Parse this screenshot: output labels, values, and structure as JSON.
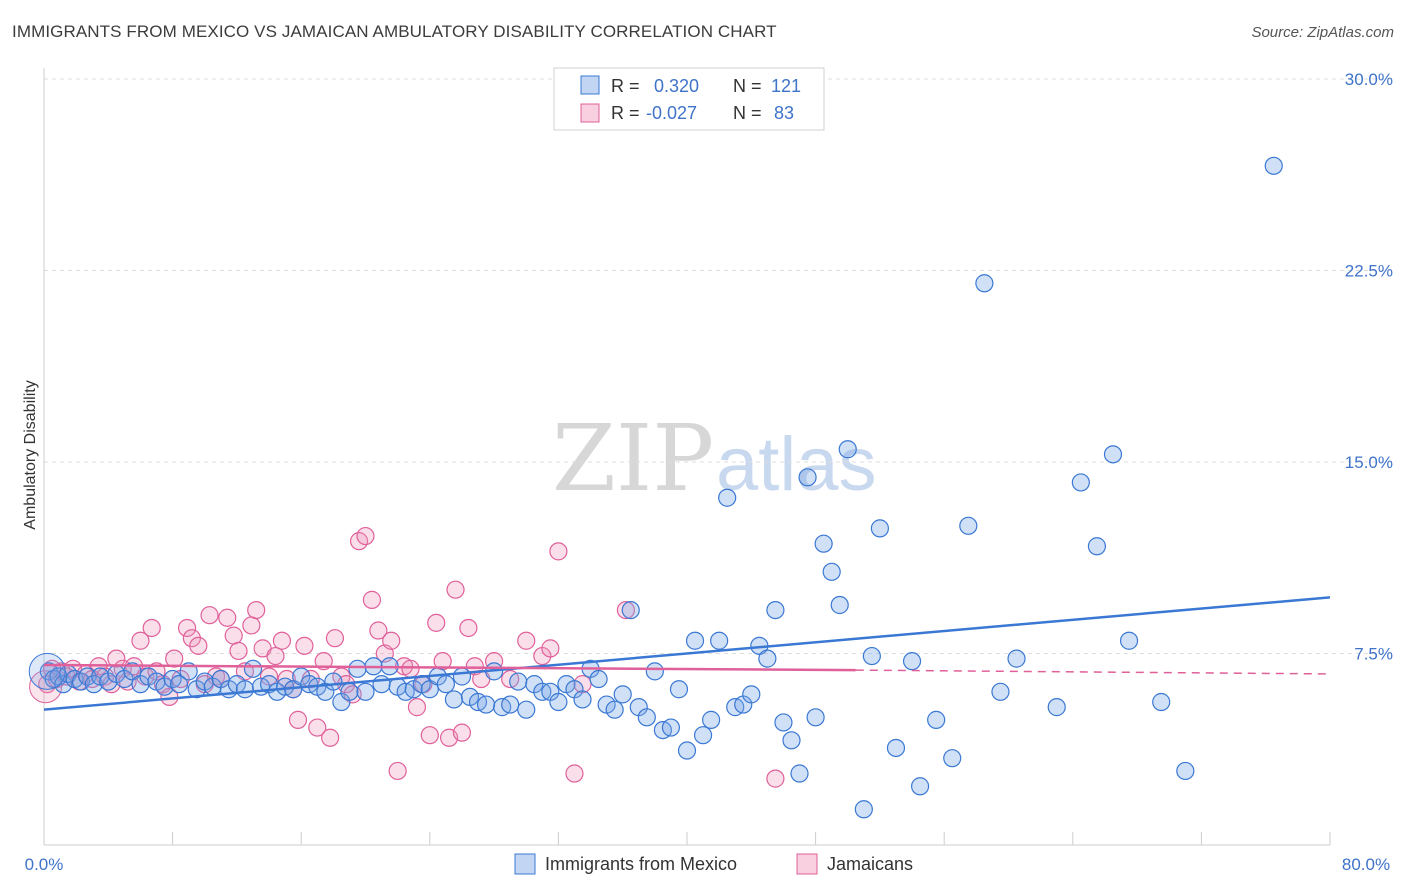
{
  "title": "IMMIGRANTS FROM MEXICO VS JAMAICAN AMBULATORY DISABILITY CORRELATION CHART",
  "source": "Source: ZipAtlas.com",
  "watermark": {
    "zip": "ZIP",
    "atlas": "atlas"
  },
  "colors": {
    "blue": "#3a78d4",
    "blue_fill": "rgba(120,165,230,0.35)",
    "pink": "#e0609a",
    "pink_fill": "rgba(240,150,185,0.30)",
    "tick_text": "#3f73c9",
    "grid": "#dddddd"
  },
  "legend": {
    "rows": [
      {
        "r_label": "R =",
        "r_value": "0.320",
        "n_label": "N =",
        "n_value": "121"
      },
      {
        "r_label": "R =",
        "r_value": "-0.027",
        "n_label": "N =",
        "n_value": "83"
      }
    ]
  },
  "chart_data": {
    "type": "scatter",
    "title": "IMMIGRANTS FROM MEXICO VS JAMAICAN AMBULATORY DISABILITY CORRELATION CHART",
    "xlabel": "",
    "ylabel": "Ambulatory Disability",
    "xlim": [
      0,
      80
    ],
    "ylim": [
      0,
      30
    ],
    "x_tick_labels": [
      "0.0%",
      "80.0%"
    ],
    "y_ticks": [
      7.5,
      15.0,
      22.5,
      30.0
    ],
    "y_tick_labels": [
      "7.5%",
      "15.0%",
      "22.5%",
      "30.0%"
    ],
    "grid": true,
    "legend_position": "top-center",
    "series": [
      {
        "name": "Immigrants from Mexico",
        "color": "blue",
        "r": 0.32,
        "n": 121,
        "trend": {
          "x": [
            0,
            80
          ],
          "y": [
            5.3,
            9.7
          ]
        },
        "points": [
          [
            0.3,
            6.8
          ],
          [
            0.6,
            6.5
          ],
          [
            0.9,
            6.6
          ],
          [
            1.2,
            6.3
          ],
          [
            1.5,
            6.7
          ],
          [
            1.9,
            6.5
          ],
          [
            2.3,
            6.4
          ],
          [
            2.7,
            6.6
          ],
          [
            3.1,
            6.3
          ],
          [
            3.5,
            6.6
          ],
          [
            4.0,
            6.4
          ],
          [
            4.5,
            6.7
          ],
          [
            5.0,
            6.5
          ],
          [
            5.5,
            6.8
          ],
          [
            6.0,
            6.3
          ],
          [
            6.5,
            6.6
          ],
          [
            7.0,
            6.4
          ],
          [
            7.5,
            6.2
          ],
          [
            8.0,
            6.5
          ],
          [
            8.4,
            6.3
          ],
          [
            9.0,
            6.8
          ],
          [
            9.5,
            6.1
          ],
          [
            10.0,
            6.4
          ],
          [
            10.5,
            6.2
          ],
          [
            11.0,
            6.5
          ],
          [
            11.5,
            6.1
          ],
          [
            12.0,
            6.3
          ],
          [
            12.5,
            6.1
          ],
          [
            13.0,
            6.9
          ],
          [
            13.5,
            6.2
          ],
          [
            14.0,
            6.3
          ],
          [
            14.5,
            6.0
          ],
          [
            15.0,
            6.2
          ],
          [
            15.5,
            6.1
          ],
          [
            16.0,
            6.6
          ],
          [
            16.5,
            6.3
          ],
          [
            17.0,
            6.2
          ],
          [
            17.5,
            6.0
          ],
          [
            18.0,
            6.4
          ],
          [
            18.5,
            5.6
          ],
          [
            19.0,
            6.0
          ],
          [
            19.5,
            6.9
          ],
          [
            20.0,
            6.0
          ],
          [
            20.5,
            7.0
          ],
          [
            21.0,
            6.3
          ],
          [
            21.5,
            7.0
          ],
          [
            22.0,
            6.2
          ],
          [
            22.5,
            6.0
          ],
          [
            23.0,
            6.1
          ],
          [
            23.5,
            6.3
          ],
          [
            24.0,
            6.1
          ],
          [
            24.5,
            6.6
          ],
          [
            25.0,
            6.3
          ],
          [
            25.5,
            5.7
          ],
          [
            26.0,
            6.6
          ],
          [
            26.5,
            5.8
          ],
          [
            27.0,
            5.6
          ],
          [
            27.5,
            5.5
          ],
          [
            28.0,
            6.8
          ],
          [
            28.5,
            5.4
          ],
          [
            29.0,
            5.5
          ],
          [
            29.5,
            6.4
          ],
          [
            30.0,
            5.3
          ],
          [
            30.5,
            6.3
          ],
          [
            31.0,
            6.0
          ],
          [
            31.5,
            6.0
          ],
          [
            32.0,
            5.6
          ],
          [
            32.5,
            6.3
          ],
          [
            33.0,
            6.1
          ],
          [
            33.5,
            5.7
          ],
          [
            34.0,
            6.9
          ],
          [
            34.5,
            6.5
          ],
          [
            35.0,
            5.5
          ],
          [
            35.5,
            5.3
          ],
          [
            36.0,
            5.9
          ],
          [
            36.5,
            9.2
          ],
          [
            37.0,
            5.4
          ],
          [
            37.5,
            5.0
          ],
          [
            38.0,
            6.8
          ],
          [
            38.5,
            4.5
          ],
          [
            39.0,
            4.6
          ],
          [
            39.5,
            6.1
          ],
          [
            40.0,
            3.7
          ],
          [
            40.5,
            8.0
          ],
          [
            41.0,
            4.3
          ],
          [
            41.5,
            4.9
          ],
          [
            42.0,
            8.0
          ],
          [
            42.5,
            13.6
          ],
          [
            43.0,
            5.4
          ],
          [
            43.5,
            5.5
          ],
          [
            44.0,
            5.9
          ],
          [
            44.5,
            7.8
          ],
          [
            45.0,
            7.3
          ],
          [
            45.5,
            9.2
          ],
          [
            46.0,
            4.8
          ],
          [
            46.5,
            4.1
          ],
          [
            47.0,
            2.8
          ],
          [
            47.5,
            14.4
          ],
          [
            48.0,
            5.0
          ],
          [
            48.5,
            11.8
          ],
          [
            49.0,
            10.7
          ],
          [
            49.5,
            9.4
          ],
          [
            50.0,
            15.5
          ],
          [
            51.0,
            1.4
          ],
          [
            51.5,
            7.4
          ],
          [
            52.0,
            12.4
          ],
          [
            53.0,
            3.8
          ],
          [
            54.0,
            7.2
          ],
          [
            54.5,
            2.3
          ],
          [
            55.5,
            4.9
          ],
          [
            56.5,
            3.4
          ],
          [
            57.5,
            12.5
          ],
          [
            58.5,
            22.0
          ],
          [
            59.5,
            6.0
          ],
          [
            60.5,
            7.3
          ],
          [
            63.0,
            5.4
          ],
          [
            64.5,
            14.2
          ],
          [
            65.5,
            11.7
          ],
          [
            66.5,
            15.3
          ],
          [
            67.5,
            8.0
          ],
          [
            69.5,
            5.6
          ],
          [
            76.5,
            26.6
          ],
          [
            71.0,
            2.9
          ]
        ]
      },
      {
        "name": "Jamaicans",
        "color": "pink",
        "r": -0.027,
        "n": 83,
        "trend": {
          "x": [
            0,
            50.5
          ],
          "y": [
            7.05,
            6.85
          ]
        },
        "trend_dashed": {
          "x": [
            50.5,
            80
          ],
          "y": [
            6.85,
            6.7
          ]
        },
        "points": [
          [
            0.2,
            6.3
          ],
          [
            0.5,
            6.9
          ],
          [
            0.8,
            6.5
          ],
          [
            1.1,
            6.8
          ],
          [
            1.4,
            6.6
          ],
          [
            1.8,
            6.9
          ],
          [
            2.2,
            6.4
          ],
          [
            2.6,
            6.7
          ],
          [
            3.0,
            6.5
          ],
          [
            3.4,
            7.0
          ],
          [
            3.8,
            6.6
          ],
          [
            4.2,
            6.3
          ],
          [
            4.5,
            7.3
          ],
          [
            4.9,
            6.9
          ],
          [
            5.2,
            6.4
          ],
          [
            5.6,
            7.0
          ],
          [
            6.0,
            8.0
          ],
          [
            6.3,
            6.6
          ],
          [
            6.7,
            8.5
          ],
          [
            7.0,
            6.8
          ],
          [
            7.4,
            6.3
          ],
          [
            7.8,
            5.8
          ],
          [
            8.1,
            7.3
          ],
          [
            8.5,
            6.5
          ],
          [
            8.9,
            8.5
          ],
          [
            9.2,
            8.1
          ],
          [
            9.6,
            7.8
          ],
          [
            10.0,
            6.3
          ],
          [
            10.3,
            9.0
          ],
          [
            10.7,
            6.6
          ],
          [
            11.0,
            6.5
          ],
          [
            11.4,
            8.9
          ],
          [
            11.8,
            8.2
          ],
          [
            12.1,
            7.6
          ],
          [
            12.5,
            6.8
          ],
          [
            12.9,
            8.6
          ],
          [
            13.2,
            9.2
          ],
          [
            13.6,
            7.7
          ],
          [
            14.0,
            6.6
          ],
          [
            14.4,
            7.4
          ],
          [
            14.8,
            8.0
          ],
          [
            15.1,
            6.5
          ],
          [
            15.5,
            6.1
          ],
          [
            15.8,
            4.9
          ],
          [
            16.2,
            7.8
          ],
          [
            16.6,
            6.5
          ],
          [
            17.0,
            4.6
          ],
          [
            17.4,
            7.2
          ],
          [
            17.8,
            4.2
          ],
          [
            18.1,
            8.1
          ],
          [
            18.5,
            6.6
          ],
          [
            18.8,
            6.3
          ],
          [
            19.2,
            5.9
          ],
          [
            19.6,
            11.9
          ],
          [
            20.0,
            12.1
          ],
          [
            20.4,
            9.6
          ],
          [
            20.8,
            8.4
          ],
          [
            21.2,
            7.5
          ],
          [
            21.6,
            8.0
          ],
          [
            22.0,
            2.9
          ],
          [
            22.4,
            7.0
          ],
          [
            22.8,
            6.9
          ],
          [
            23.2,
            5.4
          ],
          [
            23.6,
            6.3
          ],
          [
            24.0,
            4.3
          ],
          [
            24.4,
            8.7
          ],
          [
            24.8,
            7.2
          ],
          [
            25.2,
            4.2
          ],
          [
            25.6,
            10.0
          ],
          [
            26.0,
            4.4
          ],
          [
            26.4,
            8.5
          ],
          [
            26.8,
            7.0
          ],
          [
            27.2,
            6.5
          ],
          [
            28.0,
            7.2
          ],
          [
            29.0,
            6.5
          ],
          [
            30.0,
            8.0
          ],
          [
            31.0,
            7.4
          ],
          [
            31.5,
            7.7
          ],
          [
            32.0,
            11.5
          ],
          [
            33.0,
            2.8
          ],
          [
            33.5,
            6.3
          ],
          [
            36.2,
            9.2
          ],
          [
            45.5,
            2.6
          ]
        ]
      }
    ]
  }
}
